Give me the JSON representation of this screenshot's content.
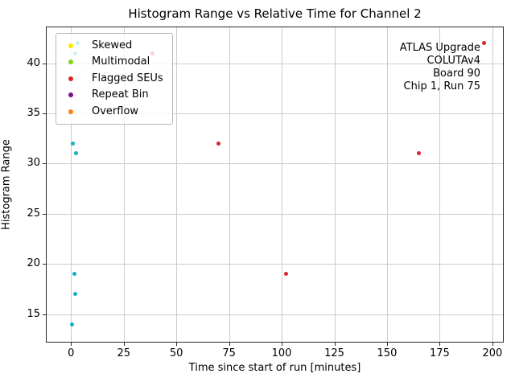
{
  "chart_data": {
    "type": "scatter",
    "title": "Histogram Range vs Relative Time for Channel 2",
    "xlabel": "Time since start of run [minutes]",
    "ylabel": "Histogram Range",
    "xlim": [
      -11.95,
      205.4
    ],
    "ylim": [
      12.17,
      43.66
    ],
    "xticks": [
      0,
      25,
      50,
      75,
      100,
      125,
      150,
      175,
      200
    ],
    "yticks": [
      15,
      20,
      25,
      30,
      35,
      40
    ],
    "grid": true,
    "legend_position": "upper left",
    "legend_entries": [
      {
        "label": "Skewed",
        "color": "#ffe800"
      },
      {
        "label": "Multimodal",
        "color": "#7fd420"
      },
      {
        "label": "Flagged SEUs",
        "color": "#d62728"
      },
      {
        "label": "Repeat Bin",
        "color": "#7d0f92"
      },
      {
        "label": "Overflow",
        "color": "#ff7f0e"
      }
    ],
    "series": [
      {
        "name": "cyan-points",
        "color": "#12b2c3",
        "points": [
          [
            3,
            42
          ],
          [
            2,
            41
          ],
          [
            1,
            32
          ],
          [
            2.5,
            31
          ],
          [
            1.5,
            19
          ],
          [
            2,
            17
          ],
          [
            0.5,
            14
          ]
        ]
      },
      {
        "name": "red-points",
        "color": "#d62728",
        "points": [
          [
            38.5,
            41
          ],
          [
            70,
            32
          ],
          [
            102,
            19
          ],
          [
            165,
            31
          ],
          [
            196,
            42
          ]
        ]
      }
    ],
    "annotation": {
      "lines": [
        "ATLAS Upgrade",
        "COLUTAv4",
        "Board 90",
        "Chip 1, Run 75"
      ]
    }
  }
}
